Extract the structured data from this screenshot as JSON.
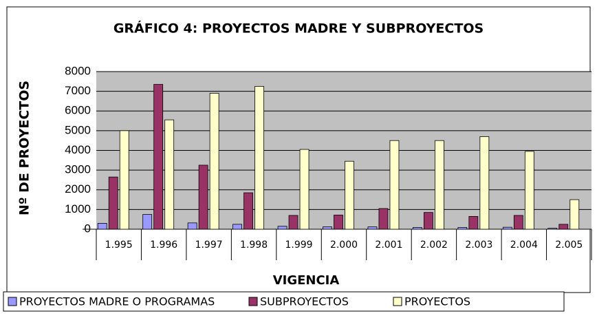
{
  "chart_data": {
    "type": "bar",
    "title": "GRÁFICO 4: PROYECTOS MADRE Y SUBPROYECTOS",
    "x_label": "VIGENCIA",
    "y_label": "Nº DE PROYECTOS",
    "categories": [
      "1.995",
      "1.996",
      "1.997",
      "1.998",
      "1.999",
      "2.000",
      "2.001",
      "2.002",
      "2.003",
      "2.004",
      "2.005"
    ],
    "series": [
      {
        "name": "PROYECTOS MADRE O PROGRAMAS",
        "color": "#9999ff",
        "values": [
          300,
          750,
          320,
          250,
          150,
          120,
          120,
          90,
          90,
          100,
          50
        ]
      },
      {
        "name": "SUBPROYECTOS",
        "color": "#993366",
        "values": [
          2650,
          7350,
          3250,
          1850,
          700,
          720,
          1050,
          850,
          650,
          700,
          250
        ]
      },
      {
        "name": "PROYECTOS",
        "color": "#ffffcc",
        "values": [
          5000,
          5550,
          6900,
          7250,
          4050,
          3450,
          4500,
          4500,
          4700,
          3950,
          1500
        ]
      }
    ],
    "ylim": [
      0,
      8000
    ],
    "yticks": [
      0,
      1000,
      2000,
      3000,
      4000,
      5000,
      6000,
      7000,
      8000
    ],
    "grid": true,
    "legend": "bottom"
  }
}
